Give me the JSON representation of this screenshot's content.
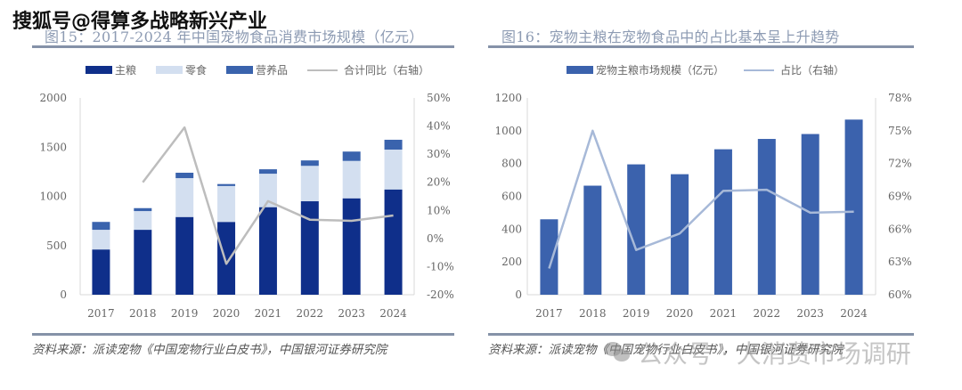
{
  "watermarks": {
    "sohu": "搜狐号@得算多战略新兴产业",
    "wechat_icon": "wechat-icon",
    "wechat": "公众号 · 大消费市场调研"
  },
  "colors": {
    "main_grain": "#0f2f8a",
    "snacks": "#d3dff0",
    "supplements": "#3a63ad",
    "yoy_line": "#bdbdbd",
    "fig16_bar": "#3b62ad",
    "fig16_line": "#a7b9d8",
    "axis": "#d9d9d9"
  },
  "chart_data": [
    {
      "type": "bar",
      "stacked": true,
      "title": "图15：2017-2024 年中国宠物食品消费市场规模（亿元）",
      "categories": [
        "2017",
        "2018",
        "2019",
        "2020",
        "2021",
        "2022",
        "2023",
        "2024"
      ],
      "series": [
        {
          "name": "主粮",
          "type": "bar",
          "axis": "left",
          "values": [
            460,
            660,
            790,
            740,
            890,
            950,
            980,
            1070
          ]
        },
        {
          "name": "零食",
          "type": "bar",
          "axis": "left",
          "values": [
            200,
            190,
            395,
            365,
            340,
            360,
            380,
            405
          ]
        },
        {
          "name": "营养品",
          "type": "bar",
          "axis": "left",
          "values": [
            80,
            30,
            55,
            20,
            45,
            55,
            95,
            100
          ]
        },
        {
          "name": "合计同比（右轴）",
          "type": "line",
          "axis": "right",
          "values": [
            null,
            20,
            39.5,
            -9,
            13.3,
            6.7,
            6.3,
            8.2
          ]
        }
      ],
      "y_left": {
        "min": 0,
        "max": 2000,
        "ticks": [
          "0",
          "500",
          "1000",
          "1500",
          "2000"
        ],
        "tick_values": [
          0,
          500,
          1000,
          1500,
          2000
        ]
      },
      "y_right": {
        "min": -20,
        "max": 50,
        "unit": "%",
        "ticks": [
          "-20%",
          "-10%",
          "0%",
          "10%",
          "20%",
          "30%",
          "40%",
          "50%"
        ],
        "tick_values": [
          -20,
          -10,
          0,
          10,
          20,
          30,
          40,
          50
        ]
      },
      "xlabel": "",
      "ylabel": "",
      "legend_position": "top-center",
      "grid": false,
      "source": "资料来源：派读宠物《中国宠物行业白皮书》，中国银河证券研究院"
    },
    {
      "type": "bar",
      "stacked": false,
      "title": "图16：宠物主粮在宠物食品中的占比基本呈上升趋势",
      "categories": [
        "2017",
        "2018",
        "2019",
        "2020",
        "2021",
        "2022",
        "2023",
        "2024"
      ],
      "series": [
        {
          "name": "宠物主粮市场规模（亿元）",
          "type": "bar",
          "axis": "left",
          "values": [
            460,
            665,
            795,
            735,
            887,
            950,
            980,
            1068
          ]
        },
        {
          "name": "占比（右轴）",
          "type": "line",
          "axis": "right",
          "values": [
            62.4,
            75.0,
            64.1,
            65.6,
            69.5,
            69.6,
            67.5,
            67.6
          ]
        }
      ],
      "y_left": {
        "min": 0,
        "max": 1200,
        "ticks": [
          "0",
          "200",
          "400",
          "600",
          "800",
          "1000",
          "1200"
        ],
        "tick_values": [
          0,
          200,
          400,
          600,
          800,
          1000,
          1200
        ]
      },
      "y_right": {
        "min": 60,
        "max": 78,
        "unit": "%",
        "ticks": [
          "60%",
          "63%",
          "66%",
          "69%",
          "72%",
          "75%",
          "78%"
        ],
        "tick_values": [
          60,
          63,
          66,
          69,
          72,
          75,
          78
        ]
      },
      "xlabel": "",
      "ylabel": "",
      "legend_position": "top-center",
      "grid": false,
      "source": "资料来源：派读宠物《中国宠物行业白皮书》，中国银河证券研究院"
    }
  ]
}
